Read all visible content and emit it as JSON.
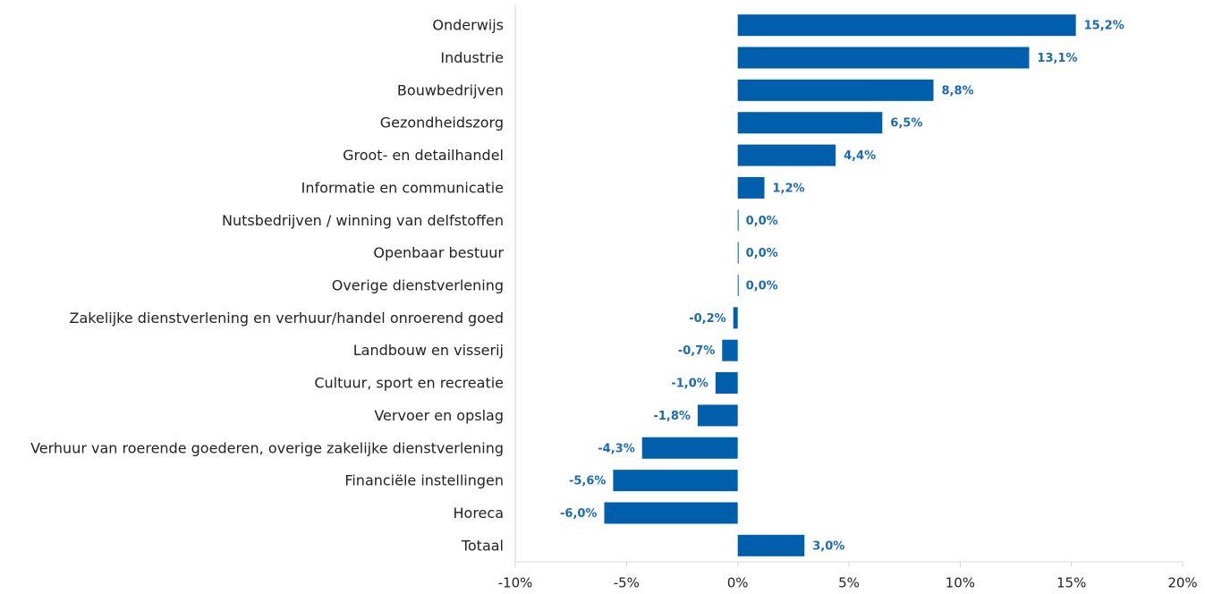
{
  "chart_data": {
    "type": "bar",
    "orientation": "horizontal",
    "categories": [
      "Onderwijs",
      "Industrie",
      "Bouwbedrijven",
      "Gezondheidszorg",
      "Groot- en detailhandel",
      "Informatie en communicatie",
      "Nutsbedrijven / winning van delfstoffen",
      "Openbaar bestuur",
      "Overige dienstverlening",
      "Zakelijke dienstverlening en verhuur/handel onroerend goed",
      "Landbouw en visserij",
      "Cultuur, sport en recreatie",
      "Vervoer en opslag",
      "Verhuur van roerende goederen, overige zakelijke dienstverlening",
      "Financiële instellingen",
      "Horeca",
      "Totaal"
    ],
    "values": [
      15.2,
      13.1,
      8.8,
      6.5,
      4.4,
      1.2,
      0.0,
      0.0,
      0.0,
      -0.2,
      -0.7,
      -1.0,
      -1.8,
      -4.3,
      -5.6,
      -6.0,
      3.0
    ],
    "value_labels": [
      "15,2%",
      "13,1%",
      "8,8%",
      "6,5%",
      "4,4%",
      "1,2%",
      "0,0%",
      "0,0%",
      "0,0%",
      "-0,2%",
      "-0,7%",
      "-1,0%",
      "-1,8%",
      "-4,3%",
      "-5,6%",
      "-6,0%",
      "3,0%"
    ],
    "color": "#005fad",
    "xlim": [
      -10,
      20
    ],
    "xticks": [
      {
        "value": -10,
        "label": "-10%"
      },
      {
        "value": -5,
        "label": "-5%"
      },
      {
        "value": 0,
        "label": "0%"
      },
      {
        "value": 5,
        "label": "5%"
      },
      {
        "value": 10,
        "label": "10%"
      },
      {
        "value": 15,
        "label": "15%"
      },
      {
        "value": 20,
        "label": "20%"
      }
    ],
    "grid": false
  }
}
